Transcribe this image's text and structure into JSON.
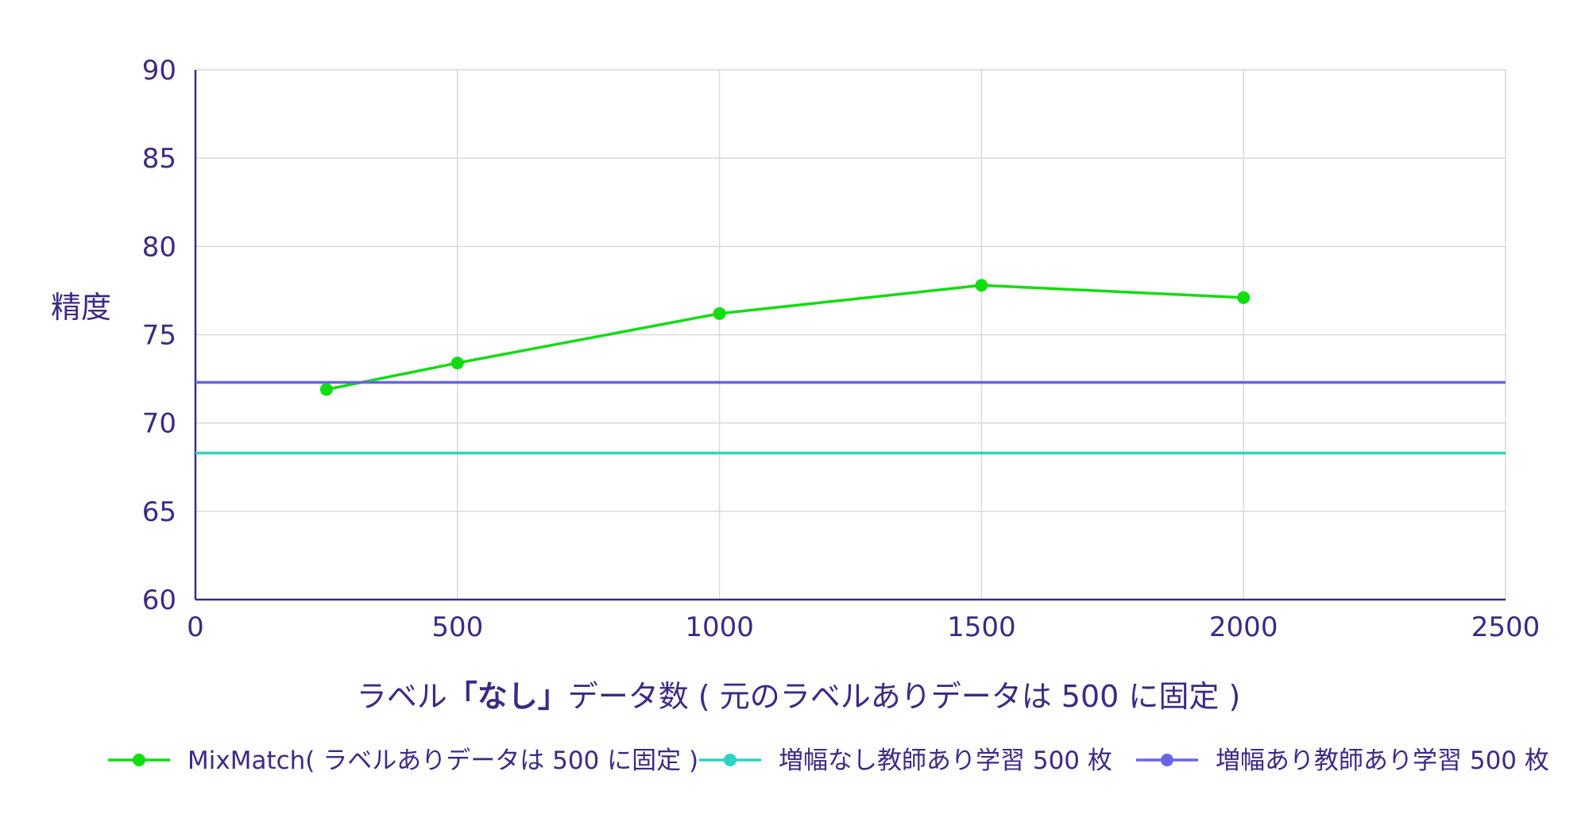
{
  "chart_data": {
    "type": "line",
    "xlim": [
      0,
      2500
    ],
    "ylim": [
      60,
      90
    ],
    "x_ticks": [
      0,
      500,
      1000,
      1500,
      2000,
      2500
    ],
    "y_ticks": [
      60,
      65,
      70,
      75,
      80,
      85,
      90
    ],
    "ylabel": "精度",
    "xlabel": {
      "before": "ラベル",
      "emphasis": "「なし」",
      "after": "データ数 ( 元のラベルありデータは 500 に固定 )"
    },
    "grid": true,
    "legend_position": "bottom",
    "series": [
      {
        "name": "MixMatch( ラベルありデータは 500 に固定 )",
        "color": "#11dd11",
        "x": [
          250,
          500,
          1000,
          1500,
          2000
        ],
        "y": [
          71.9,
          73.4,
          76.2,
          77.8,
          77.1
        ]
      },
      {
        "name": "増幅なし教師あり学習 500 枚",
        "color": "#2fd3c0",
        "type": "hline",
        "y": 68.3
      },
      {
        "name": "増幅あり教師あり学習 500 枚",
        "color": "#6a63e8",
        "type": "hline",
        "y": 72.3
      }
    ]
  }
}
